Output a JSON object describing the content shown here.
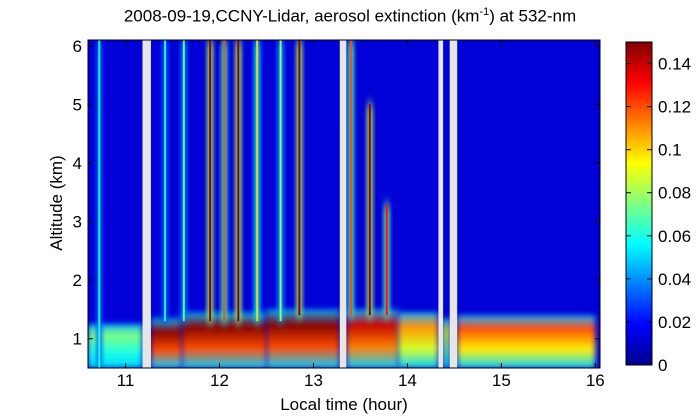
{
  "title": {
    "prefix": "2008-09-19,CCNY-Lidar, aerosol extinction (km",
    "superscript": "-1",
    "suffix": ") at 532-nm"
  },
  "chart_data": {
    "type": "heatmap",
    "title": "2008-09-19,CCNY-Lidar, aerosol extinction (km-1) at 532-nm",
    "xlabel": "Local time (hour)",
    "ylabel": "Altitude (km)",
    "xlim": [
      10.6,
      16.05
    ],
    "ylim": [
      0.5,
      6.1
    ],
    "x_ticks": [
      11,
      12,
      13,
      14,
      15,
      16
    ],
    "y_ticks": [
      1,
      2,
      3,
      4,
      5,
      6
    ],
    "colorbar": {
      "range": [
        0,
        0.15
      ],
      "ticks": [
        0,
        0.02,
        0.04,
        0.06,
        0.08,
        0.1,
        0.12,
        0.14
      ],
      "tick_labels": [
        "0",
        "0.02",
        "0.04",
        "0.06",
        "0.08",
        "0.1",
        "0.12",
        "0.14"
      ],
      "colormap": "jet"
    },
    "background_value": 0.012,
    "data_gaps_hours": [
      [
        11.18,
        11.27
      ],
      [
        13.28,
        13.35
      ],
      [
        14.33,
        14.38
      ],
      [
        14.45,
        14.53
      ]
    ],
    "boundary_layer": [
      {
        "t_start": 10.6,
        "t_end": 11.18,
        "top_km": 1.25,
        "value": 0.075
      },
      {
        "t_start": 11.27,
        "t_end": 11.6,
        "top_km": 1.35,
        "value": 0.15
      },
      {
        "t_start": 11.6,
        "t_end": 12.5,
        "top_km": 1.45,
        "value": 0.15
      },
      {
        "t_start": 12.5,
        "t_end": 13.28,
        "top_km": 1.5,
        "value": 0.15
      },
      {
        "t_start": 13.35,
        "t_end": 13.9,
        "top_km": 1.5,
        "value": 0.14
      },
      {
        "t_start": 13.9,
        "t_end": 14.33,
        "top_km": 1.45,
        "value": 0.11
      },
      {
        "t_start": 14.38,
        "t_end": 14.45,
        "top_km": 1.35,
        "value": 0.09
      },
      {
        "t_start": 14.53,
        "t_end": 16.0,
        "top_km": 1.4,
        "value": 0.12
      }
    ],
    "plumes": [
      {
        "t": 10.72,
        "bottom_km": 0.5,
        "top_km": 6.1,
        "value": 0.06
      },
      {
        "t": 11.42,
        "bottom_km": 1.3,
        "top_km": 6.1,
        "value": 0.06
      },
      {
        "t": 11.62,
        "bottom_km": 1.3,
        "top_km": 6.1,
        "value": 0.07
      },
      {
        "t": 11.9,
        "bottom_km": 1.3,
        "top_km": 6.1,
        "value": 0.15
      },
      {
        "t": 12.05,
        "bottom_km": 1.3,
        "top_km": 6.1,
        "value": 0.12
      },
      {
        "t": 12.2,
        "bottom_km": 1.3,
        "top_km": 6.1,
        "value": 0.15
      },
      {
        "t": 12.4,
        "bottom_km": 1.3,
        "top_km": 6.1,
        "value": 0.1
      },
      {
        "t": 12.65,
        "bottom_km": 1.3,
        "top_km": 6.1,
        "value": 0.08
      },
      {
        "t": 12.85,
        "bottom_km": 1.4,
        "top_km": 6.1,
        "value": 0.15
      },
      {
        "t": 13.4,
        "bottom_km": 1.4,
        "top_km": 6.1,
        "value": 0.12
      },
      {
        "t": 13.6,
        "bottom_km": 1.4,
        "top_km": 5.0,
        "value": 0.15
      },
      {
        "t": 13.78,
        "bottom_km": 1.4,
        "top_km": 3.3,
        "value": 0.13
      }
    ]
  }
}
